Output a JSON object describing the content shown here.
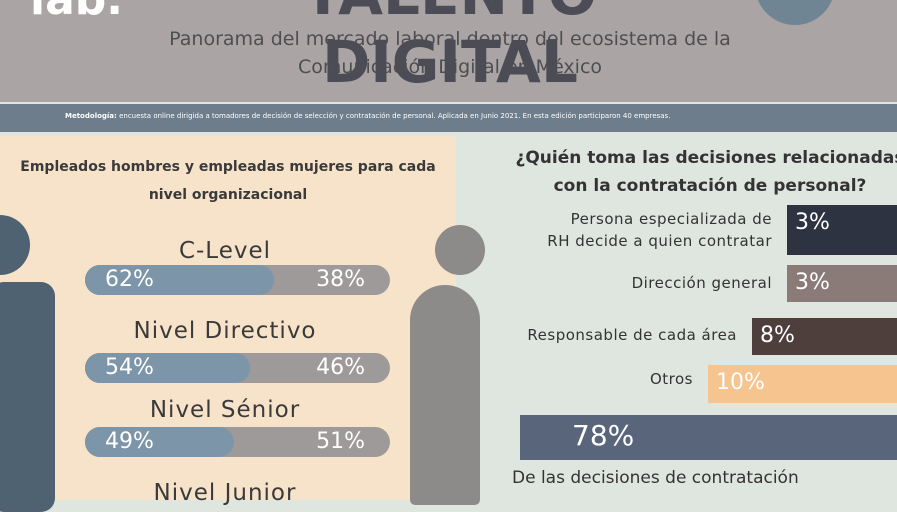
{
  "header": {
    "logo": "lab.",
    "title": "TALENTO DIGITAL",
    "subtitle": [
      "Panorama del mercado laboral dentro del ecosistema de la",
      "Comunicación Digital en México"
    ]
  },
  "methodology": {
    "label": "Metodología:",
    "text": "encuesta online dirigida a tomadores de decisión de selección y contratación de personal. Aplicada en Junio 2021. En esta edición participaron 40 empresas."
  },
  "left": {
    "title": [
      "Empleados hombres y empleadas mujeres para cada",
      "nivel organizacional"
    ],
    "levels": [
      {
        "name": "C-Level",
        "men": "62%",
        "women": "38%"
      },
      {
        "name": "Nivel Directivo",
        "men": "54%",
        "women": "46%"
      },
      {
        "name": "Nivel Sénior",
        "men": "49%",
        "women": "51%"
      },
      {
        "name": "Nivel Junior"
      }
    ]
  },
  "right": {
    "title": [
      "¿Quién toma las decisiones relacionadas",
      "con la contratación de personal?"
    ],
    "items": [
      {
        "label": [
          "Persona especializada de",
          "RH decide a quien contratar"
        ],
        "value": "3%"
      },
      {
        "label": [
          "Dirección general"
        ],
        "value": "3%"
      },
      {
        "label": [
          "Responsable de cada área"
        ],
        "value": "8%"
      },
      {
        "label": [
          "Otros"
        ],
        "value": "10%"
      }
    ],
    "highlight": {
      "value": "78%",
      "text": "De las decisiones de contratación"
    }
  }
}
